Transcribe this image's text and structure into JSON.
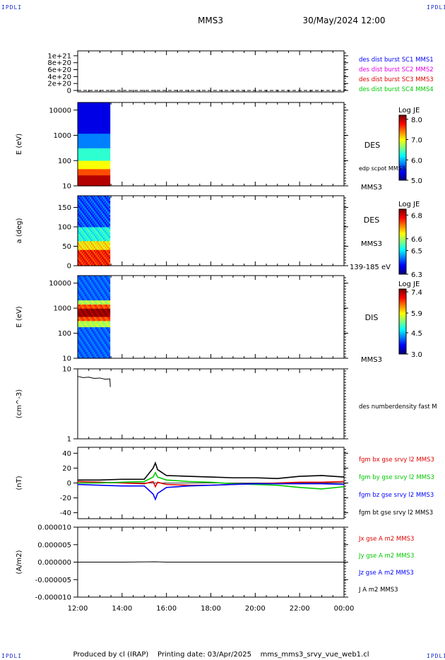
{
  "header": {
    "corner_label": "IPDLI",
    "spacecraft": "MMS3",
    "datetime": "30/May/2024 12:00"
  },
  "footer": {
    "text": "Produced by cl (IRAP)    Printing date: 03/Apr/2025    mms_mms3_srvy_vue_web1.cl"
  },
  "colors": {
    "blue": "#0000ff",
    "magenta": "#e000e0",
    "red": "#e00000",
    "green": "#00c800",
    "black": "#000000"
  },
  "chart_data": [
    {
      "type": "line",
      "panel": "burst-flags",
      "ylabel": "",
      "yticks": [
        "1e+21",
        "8e+20",
        "6e+20",
        "4e+20",
        "2e+20",
        "0"
      ],
      "ylim": [
        0,
        1.1e+21
      ],
      "x_ticks": [
        "12:00",
        "14:00",
        "16:00",
        "18:00",
        "20:00",
        "22:00",
        "00:00"
      ],
      "series": [
        {
          "name": "des dist burst SC1 MMS1",
          "color": "#0000ff"
        },
        {
          "name": "des dist burst SC2 MMS2",
          "color": "#e000e0"
        },
        {
          "name": "des dist burst SC3 MMS3",
          "color": "#e00000"
        },
        {
          "name": "des dist burst SC4 MMS4",
          "color": "#00c800"
        }
      ]
    },
    {
      "type": "heatmap",
      "panel": "des-energy-spectrogram",
      "ylabel": "E (eV)",
      "yscale": "log",
      "yticks": [
        "10000",
        "1000",
        "100",
        "10"
      ],
      "ylim": [
        10,
        20000
      ],
      "data_coverage_hours": [
        12.0,
        13.45
      ],
      "right_labels": [
        "DES",
        "edp scpot MMS3",
        "MMS3"
      ],
      "colorbar": {
        "title": "Log JE",
        "ticks": [
          "8.0",
          "7.0",
          "6.0",
          "5.0"
        ],
        "range": [
          5.0,
          8.2
        ]
      }
    },
    {
      "type": "heatmap",
      "panel": "des-pitch-angle",
      "ylabel": "a (deg)",
      "yticks": [
        "150",
        "100",
        "50",
        "0"
      ],
      "ylim": [
        0,
        180
      ],
      "data_coverage_hours": [
        12.0,
        13.45
      ],
      "right_labels": [
        "DES",
        "MMS3",
        "139-185 eV"
      ],
      "colorbar": {
        "title": "Log JE",
        "ticks": [
          "6.8",
          "6.6",
          "6.5",
          "6.3"
        ],
        "range": [
          6.3,
          6.85
        ]
      }
    },
    {
      "type": "heatmap",
      "panel": "dis-energy-spectrogram",
      "ylabel": "E (eV)",
      "yscale": "log",
      "yticks": [
        "10000",
        "1000",
        "100",
        "10"
      ],
      "ylim": [
        10,
        20000
      ],
      "data_coverage_hours": [
        12.0,
        13.45
      ],
      "right_labels": [
        "DIS",
        "MMS3"
      ],
      "colorbar": {
        "title": "Log JE",
        "ticks": [
          "7.4",
          "5.9",
          "4.5",
          "3.0"
        ],
        "range": [
          3.0,
          7.6
        ]
      }
    },
    {
      "type": "line",
      "panel": "des-density",
      "ylabel": "(cm^-3)",
      "yscale": "log",
      "yticks": [
        "10",
        "1"
      ],
      "ylim": [
        1,
        10
      ],
      "series": [
        {
          "name": "des numberdensity fast M",
          "color": "#000000",
          "x": [
            12.0,
            12.25,
            12.5,
            12.75,
            13.0,
            13.25,
            13.45,
            13.47
          ],
          "y": [
            7.8,
            7.5,
            7.6,
            7.3,
            7.4,
            7.1,
            7.2,
            5.5
          ]
        }
      ]
    },
    {
      "type": "line",
      "panel": "fgm-b",
      "ylabel": "(nT)",
      "yticks": [
        "40",
        "20",
        "0",
        "-20",
        "-40"
      ],
      "ylim": [
        -48,
        48
      ],
      "series": [
        {
          "name": "fgm bx gse srvy l2 MMS3",
          "color": "#e00000",
          "x": [
            12.0,
            13.0,
            14.0,
            15.0,
            15.4,
            15.5,
            15.6,
            16.0,
            17.0,
            18.0,
            19.0,
            20.0,
            21.0,
            22.0,
            23.0,
            24.0
          ],
          "y": [
            2,
            1,
            0,
            -1,
            2,
            -5,
            1,
            -2,
            -3,
            -3,
            -2,
            -1,
            0,
            1,
            1,
            2
          ]
        },
        {
          "name": "fgm by gse srvy l2 MMS3",
          "color": "#00c800",
          "x": [
            12.0,
            13.0,
            14.0,
            15.0,
            15.4,
            15.5,
            15.6,
            16.0,
            17.0,
            18.0,
            19.0,
            20.0,
            21.0,
            22.0,
            23.0,
            24.0
          ],
          "y": [
            0,
            0,
            1,
            2,
            8,
            14,
            8,
            4,
            2,
            1,
            -1,
            -2,
            -3,
            -6,
            -8,
            -5
          ]
        },
        {
          "name": "fgm bz gse srvy l2 MMS3",
          "color": "#0000ff",
          "x": [
            12.0,
            13.0,
            14.0,
            15.0,
            15.4,
            15.5,
            15.6,
            16.0,
            17.0,
            18.0,
            19.0,
            20.0,
            21.0,
            22.0,
            23.0,
            24.0
          ],
          "y": [
            -2,
            -3,
            -4,
            -4,
            -15,
            -22,
            -14,
            -6,
            -4,
            -3,
            -2,
            -1,
            -1,
            -1,
            -1,
            -2
          ]
        },
        {
          "name": "fgm bt gse srvy l2 MMS3",
          "color": "#000000",
          "x": [
            12.0,
            13.0,
            14.0,
            15.0,
            15.4,
            15.5,
            15.6,
            16.0,
            17.0,
            18.0,
            19.0,
            20.0,
            21.0,
            22.0,
            23.0,
            24.0
          ],
          "y": [
            4,
            4,
            5,
            5,
            20,
            27,
            18,
            10,
            9,
            8,
            7,
            7,
            6,
            9,
            10,
            8
          ]
        }
      ]
    },
    {
      "type": "line",
      "panel": "curlometer-j",
      "ylabel": "(A/m2)",
      "yticks": [
        "0.000010",
        "0.000005",
        "0.000000",
        "-0.000005",
        "-0.000010"
      ],
      "ylim": [
        -1e-05,
        1e-05
      ],
      "x_ticks": [
        "12:00",
        "14:00",
        "16:00",
        "18:00",
        "20:00",
        "22:00",
        "00:00"
      ],
      "series": [
        {
          "name": "Jx gse A m2 MMS3",
          "color": "#e00000"
        },
        {
          "name": "Jy gse A m2 MMS3",
          "color": "#00c800"
        },
        {
          "name": "Jz gse A m2 MMS3",
          "color": "#0000ff"
        },
        {
          "name": "J A m2 MMS3",
          "color": "#000000",
          "x": [
            12.0,
            14.0,
            15.5,
            16.0,
            18.0,
            20.0,
            22.0,
            24.0
          ],
          "y": [
            0,
            0,
            1e-07,
            0,
            0,
            0,
            0,
            0
          ]
        }
      ]
    }
  ]
}
